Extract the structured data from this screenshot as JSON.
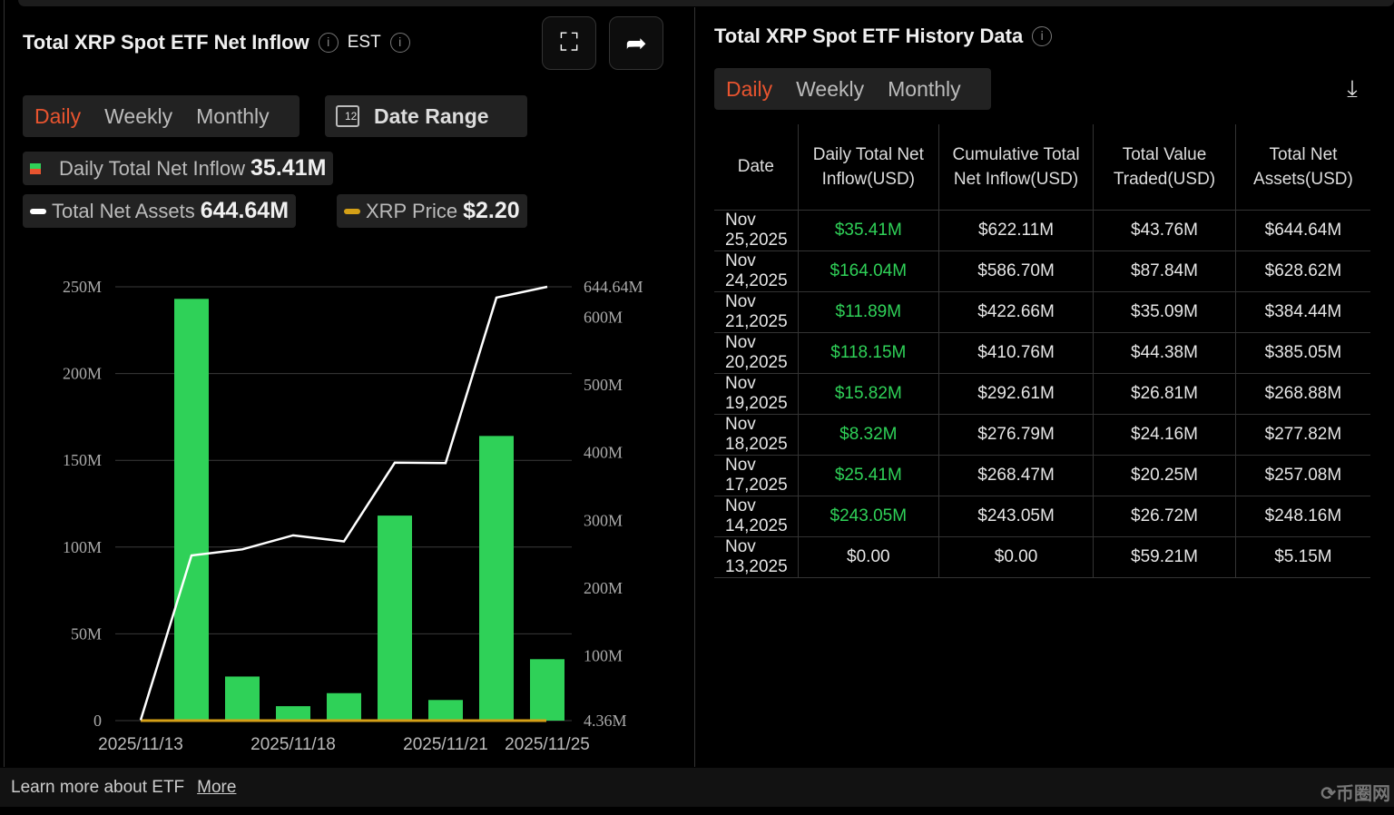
{
  "left": {
    "title": "Total XRP Spot ETF Net Inflow",
    "timezone": "EST",
    "tabs": [
      "Daily",
      "Weekly",
      "Monthly"
    ],
    "date_range": "Date Range",
    "calendar_num": "12",
    "legend": {
      "inflow_label": "Daily Total Net Inflow",
      "inflow_value": "35.41M",
      "assets_label": "Total Net Assets",
      "assets_value": "644.64M",
      "price_label": "XRP Price",
      "price_value": "$2.20"
    }
  },
  "chart_data": {
    "type": "bar",
    "x": [
      "2025/11/13",
      "2025/11/14",
      "2025/11/17",
      "2025/11/18",
      "2025/11/19",
      "2025/11/20",
      "2025/11/21",
      "2025/11/24",
      "2025/11/25"
    ],
    "xticks": [
      "2025/11/13",
      "2025/11/18",
      "2025/11/21",
      "2025/11/25"
    ],
    "series": [
      {
        "name": "Daily Total Net Inflow",
        "type": "bar",
        "values": [
          0,
          243.05,
          25.41,
          8.32,
          15.82,
          118.15,
          11.89,
          164.04,
          35.41
        ],
        "color": "#2fd158"
      },
      {
        "name": "Total Net Assets",
        "type": "line",
        "values": [
          5.15,
          248.16,
          257.08,
          277.82,
          268.88,
          385.05,
          384.44,
          628.62,
          644.64
        ],
        "color": "#ffffff"
      },
      {
        "name": "XRP Price",
        "type": "line",
        "color": "#d4a017"
      }
    ],
    "yleft": {
      "ticks": [
        "0",
        "50M",
        "100M",
        "150M",
        "200M",
        "250M"
      ],
      "values": [
        0,
        50,
        100,
        150,
        200,
        250
      ],
      "range": [
        0,
        250
      ]
    },
    "yright": {
      "ticks": [
        "4.36M",
        "100M",
        "200M",
        "300M",
        "400M",
        "500M",
        "600M",
        "644.64M"
      ],
      "values": [
        4.36,
        100,
        200,
        300,
        400,
        500,
        600,
        644.64
      ],
      "range": [
        4.36,
        644.64
      ]
    }
  },
  "right": {
    "title": "Total XRP Spot ETF History Data",
    "tabs": [
      "Daily",
      "Weekly",
      "Monthly"
    ],
    "columns": [
      "Date",
      "Daily Total Net Inflow(USD)",
      "Cumulative Total Net Inflow(USD)",
      "Total Value Traded(USD)",
      "Total Net Assets(USD)"
    ],
    "rows": [
      [
        "Nov 25,2025",
        "$35.41M",
        "$622.11M",
        "$43.76M",
        "$644.64M"
      ],
      [
        "Nov 24,2025",
        "$164.04M",
        "$586.70M",
        "$87.84M",
        "$628.62M"
      ],
      [
        "Nov 21,2025",
        "$11.89M",
        "$422.66M",
        "$35.09M",
        "$384.44M"
      ],
      [
        "Nov 20,2025",
        "$118.15M",
        "$410.76M",
        "$44.38M",
        "$385.05M"
      ],
      [
        "Nov 19,2025",
        "$15.82M",
        "$292.61M",
        "$26.81M",
        "$268.88M"
      ],
      [
        "Nov 18,2025",
        "$8.32M",
        "$276.79M",
        "$24.16M",
        "$277.82M"
      ],
      [
        "Nov 17,2025",
        "$25.41M",
        "$268.47M",
        "$20.25M",
        "$257.08M"
      ],
      [
        "Nov 14,2025",
        "$243.05M",
        "$243.05M",
        "$26.72M",
        "$248.16M"
      ],
      [
        "Nov 13,2025",
        "$0.00",
        "$0.00",
        "$59.21M",
        "$5.15M"
      ]
    ]
  },
  "footer": {
    "text": "Learn more about ETF",
    "link": "More"
  },
  "watermark": "币圈网"
}
